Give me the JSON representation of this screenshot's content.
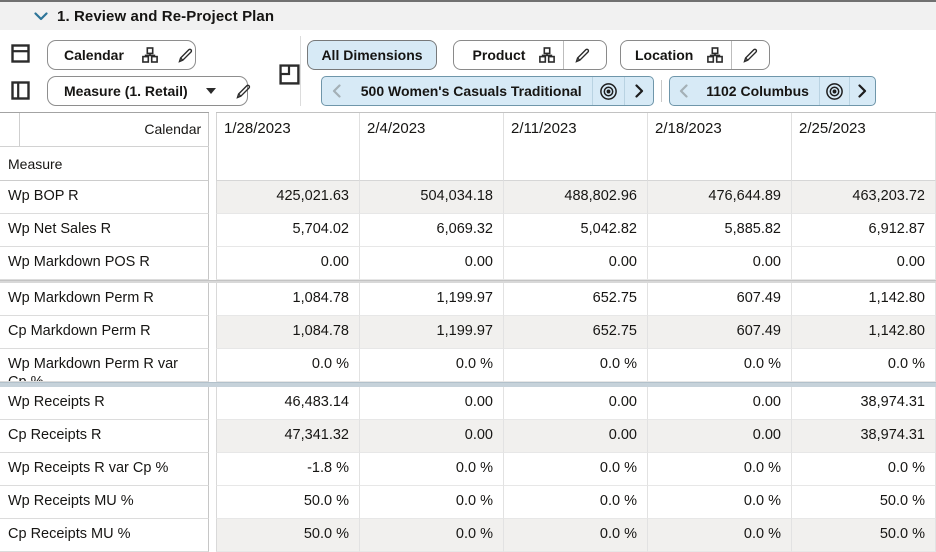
{
  "header": {
    "title": "1. Review and Re-Project Plan"
  },
  "toolbar": {
    "rows_axis": {
      "label": "Calendar"
    },
    "cols_axis": {
      "label": "Measure (1. Retail)"
    },
    "slice_buttons": [
      {
        "label": "All Dimensions",
        "active": true
      },
      {
        "label": "Product",
        "active": false
      },
      {
        "label": "Location",
        "active": false
      }
    ],
    "page_tiles": [
      {
        "label": "500 Women's Casuals Traditional"
      },
      {
        "label": "1102 Columbus"
      }
    ]
  },
  "pivot": {
    "corner_dim": "Calendar",
    "row_dim": "Measure",
    "columns": [
      "1/28/2023",
      "2/4/2023",
      "2/11/2023",
      "2/18/2023",
      "2/25/2023"
    ],
    "rows": [
      {
        "label": "Wp BOP R",
        "shaded": true,
        "values": [
          "425,021.63",
          "504,034.18",
          "488,802.96",
          "476,644.89",
          "463,203.72"
        ]
      },
      {
        "label": "Wp Net Sales R",
        "shaded": false,
        "values": [
          "5,704.02",
          "6,069.32",
          "5,042.82",
          "5,885.82",
          "6,912.87"
        ]
      },
      {
        "label": "Wp Markdown POS R",
        "shaded": false,
        "values": [
          "0.00",
          "0.00",
          "0.00",
          "0.00",
          "0.00"
        ],
        "sep_after": "gray"
      },
      {
        "label": "Wp Markdown Perm R",
        "shaded": false,
        "values": [
          "1,084.78",
          "1,199.97",
          "652.75",
          "607.49",
          "1,142.80"
        ]
      },
      {
        "label": "Cp Markdown Perm R",
        "shaded": true,
        "values": [
          "1,084.78",
          "1,199.97",
          "652.75",
          "607.49",
          "1,142.80"
        ]
      },
      {
        "label": "Wp Markdown Perm R var Cp %",
        "shaded": false,
        "values": [
          "0.0 %",
          "0.0 %",
          "0.0 %",
          "0.0 %",
          "0.0 %"
        ],
        "sep_after": "blue"
      },
      {
        "label": "Wp Receipts R",
        "shaded": false,
        "values": [
          "46,483.14",
          "0.00",
          "0.00",
          "0.00",
          "38,974.31"
        ]
      },
      {
        "label": "Cp Receipts R",
        "shaded": true,
        "values": [
          "47,341.32",
          "0.00",
          "0.00",
          "0.00",
          "38,974.31"
        ]
      },
      {
        "label": "Wp Receipts R var Cp %",
        "shaded": false,
        "values": [
          "-1.8 %",
          "0.0 %",
          "0.0 %",
          "0.0 %",
          "0.0 %"
        ]
      },
      {
        "label": "Wp Receipts MU %",
        "shaded": false,
        "values": [
          "50.0 %",
          "0.0 %",
          "0.0 %",
          "0.0 %",
          "50.0 %"
        ]
      },
      {
        "label": "Cp Receipts MU %",
        "shaded": true,
        "values": [
          "50.0 %",
          "0.0 %",
          "0.0 %",
          "0.0 %",
          "50.0 %"
        ]
      }
    ]
  },
  "icons": [
    "collapse-chevron-icon",
    "rows-axis-icon",
    "columns-axis-icon",
    "hierarchy-icon",
    "edit-pencil-icon",
    "dropdown-caret-icon",
    "page-axis-icon",
    "prev-chevron-icon",
    "next-chevron-icon",
    "target-icon"
  ],
  "colors": {
    "accent_fill": "#d7eaf6",
    "tile_border": "#6f96aa",
    "shaded_cell": "#f1f0ee",
    "separator_gray": "#d8d8d8",
    "separator_blue": "#c6d2da",
    "title_chevron": "#2e7599"
  }
}
